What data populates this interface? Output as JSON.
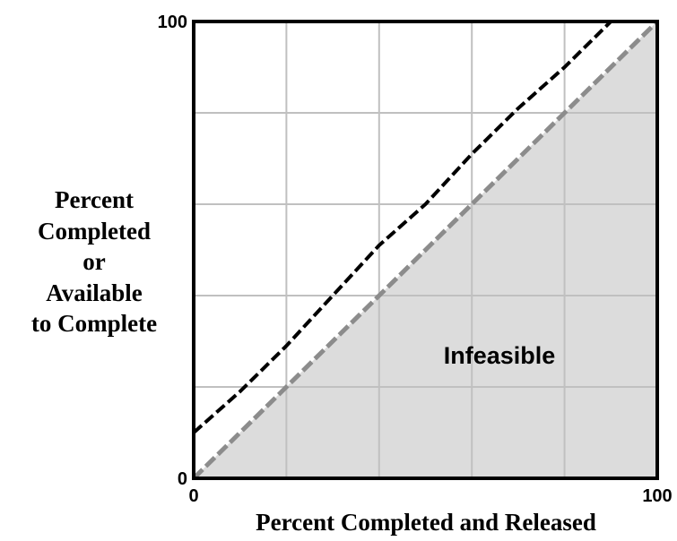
{
  "chart_data": {
    "type": "line",
    "xlabel": "Percent Completed and Released",
    "ylabel": [
      "Percent",
      "Completed",
      "or",
      "Available",
      "to  Complete"
    ],
    "annotation": "Infeasible",
    "xlim": [
      0,
      100
    ],
    "ylim": [
      0,
      100
    ],
    "xticks": [
      0,
      100
    ],
    "yticks": [
      0,
      100
    ],
    "xgrid": [
      20,
      40,
      60,
      80
    ],
    "ygrid": [
      20,
      40,
      60,
      80
    ],
    "region_color": "#dcdcdc",
    "series": [
      {
        "color": "#000000",
        "x": [
          0,
          10,
          20,
          30,
          40,
          50,
          60,
          70,
          80,
          90
        ],
        "values": [
          10,
          19,
          29,
          40,
          51,
          60,
          71,
          81,
          90,
          100
        ]
      },
      {
        "color": "#8c8c8c",
        "x": [
          0,
          20,
          40,
          60,
          80,
          100
        ],
        "values": [
          0,
          20,
          40,
          60,
          80,
          100
        ]
      }
    ]
  }
}
